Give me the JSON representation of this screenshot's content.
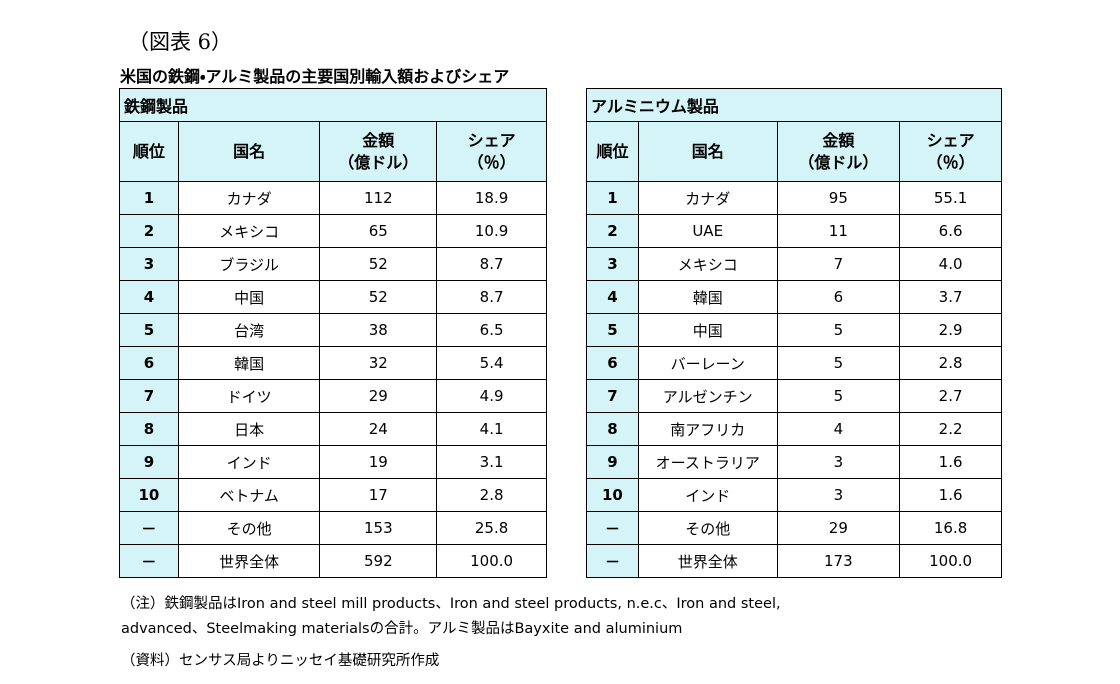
{
  "caption": "（図表 6）",
  "title": "米国の鉄鋼・アルミ製品の主要国別輸入額およびシェア",
  "tables": [
    {
      "title": "鉄鋼製品",
      "columns": [
        [
          "順位"
        ],
        [
          "国名"
        ],
        [
          "金額",
          "（億ドル）"
        ],
        [
          "シェア",
          "（％）"
        ]
      ],
      "rows": [
        [
          "1",
          "カナダ",
          "112",
          "18.9"
        ],
        [
          "2",
          "メキシコ",
          "65",
          "10.9"
        ],
        [
          "3",
          "ブラジル",
          "52",
          "8.7"
        ],
        [
          "4",
          "中国",
          "52",
          "8.7"
        ],
        [
          "5",
          "台湾",
          "38",
          "6.5"
        ],
        [
          "6",
          "韓国",
          "32",
          "5.4"
        ],
        [
          "7",
          "ドイツ",
          "29",
          "4.9"
        ],
        [
          "8",
          "日本",
          "24",
          "4.1"
        ],
        [
          "9",
          "インド",
          "19",
          "3.1"
        ],
        [
          "10",
          "ベトナム",
          "17",
          "2.8"
        ],
        [
          "－",
          "その他",
          "153",
          "25.8"
        ],
        [
          "－",
          "世界全体",
          "592",
          "100.0"
        ]
      ]
    },
    {
      "title": "アルミニウム製品",
      "columns": [
        [
          "順位"
        ],
        [
          "国名"
        ],
        [
          "金額",
          "（億ドル）"
        ],
        [
          "シェア",
          "（％）"
        ]
      ],
      "rows": [
        [
          "1",
          "カナダ",
          "95",
          "55.1"
        ],
        [
          "2",
          "UAE",
          "11",
          "6.6"
        ],
        [
          "3",
          "メキシコ",
          "7",
          "4.0"
        ],
        [
          "4",
          "韓国",
          "6",
          "3.7"
        ],
        [
          "5",
          "中国",
          "5",
          "2.9"
        ],
        [
          "6",
          "バーレーン",
          "5",
          "2.8"
        ],
        [
          "7",
          "アルゼンチン",
          "5",
          "2.7"
        ],
        [
          "8",
          "南アフリカ",
          "4",
          "2.2"
        ],
        [
          "9",
          "オーストラリア",
          "3",
          "1.6"
        ],
        [
          "10",
          "インド",
          "3",
          "1.6"
        ],
        [
          "－",
          "その他",
          "29",
          "16.8"
        ],
        [
          "－",
          "世界全体",
          "173",
          "100.0"
        ]
      ]
    }
  ],
  "notes": [
    "（注）鉄鋼製品はIron and steel mill products、Iron and steel products, n.e.c、Iron and steel,",
    "advanced、Steelmaking materialsの合計。アルミ製品はBayxite and aluminium",
    "（資料）センサス局よりニッセイ基礎研究所作成"
  ]
}
